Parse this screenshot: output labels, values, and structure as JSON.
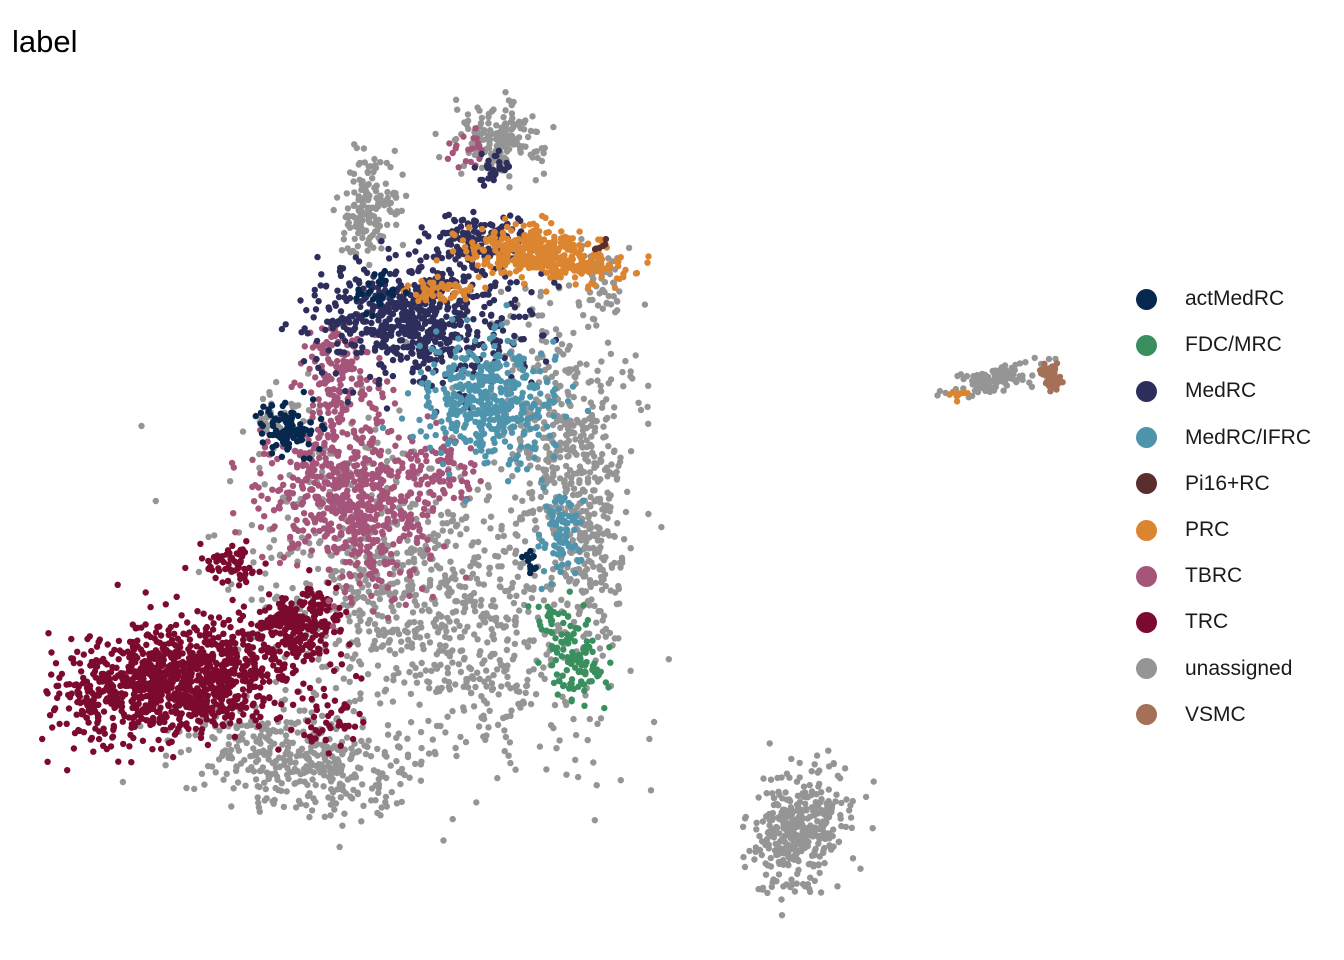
{
  "chart_data": {
    "type": "scatter",
    "title": "label",
    "legend_position": "right",
    "grid": false,
    "axes_visible": false,
    "series": [
      {
        "name": "actMedRC",
        "color": "#06284F"
      },
      {
        "name": "FDC/MRC",
        "color": "#3A8F5E"
      },
      {
        "name": "MedRC",
        "color": "#2E2E5C"
      },
      {
        "name": "MedRC/IFRC",
        "color": "#4E94AD"
      },
      {
        "name": "Pi16+RC",
        "color": "#5A2E2C"
      },
      {
        "name": "PRC",
        "color": "#DC8530"
      },
      {
        "name": "TBRC",
        "color": "#A5547A"
      },
      {
        "name": "TRC",
        "color": "#7C0A2E"
      },
      {
        "name": "unassigned",
        "color": "#959595"
      },
      {
        "name": "VSMC",
        "color": "#A57058"
      }
    ]
  }
}
